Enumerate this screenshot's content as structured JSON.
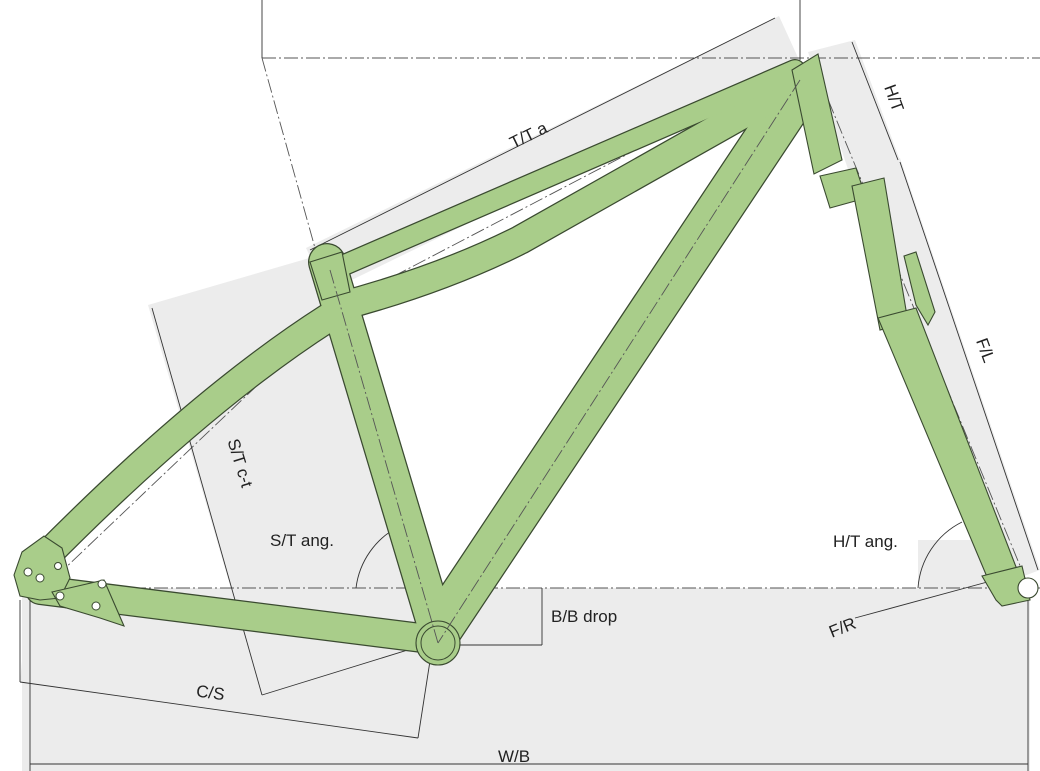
{
  "colors": {
    "frame_fill": "#a9cd8a",
    "frame_outline": "#3a4a30",
    "dimension_area": "#ececec",
    "dimension_line": "#333333"
  },
  "labels": {
    "top_tube": "T/T a",
    "head_tube": "H/T",
    "fork_length": "F/L",
    "seat_tube": "S/T c-t",
    "seat_tube_angle": "S/T ang.",
    "head_tube_angle": "H/T ang.",
    "bb_drop": "B/B drop",
    "fork_rake": "F/R",
    "chainstay": "C/S",
    "wheelbase": "W/B"
  }
}
